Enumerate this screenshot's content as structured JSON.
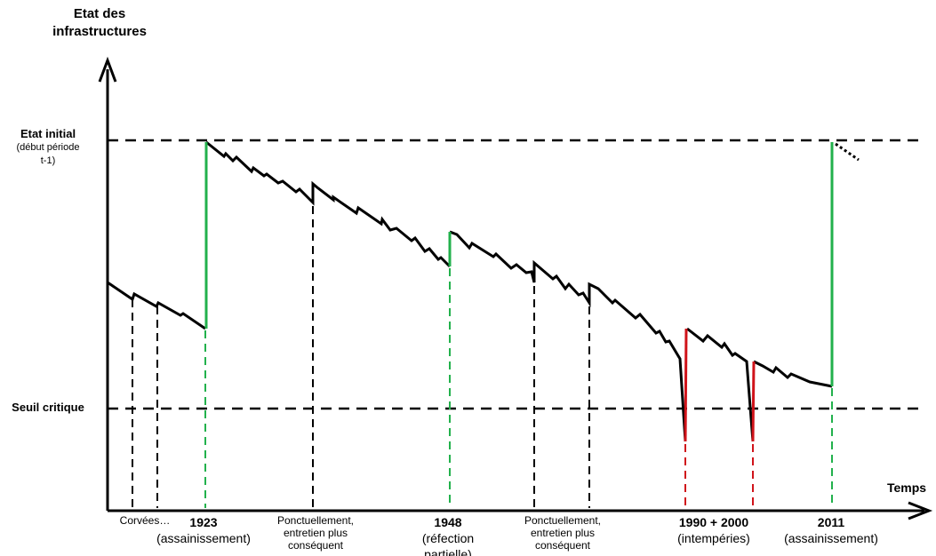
{
  "axis": {
    "y_title_line1": "Etat des",
    "y_title_line2": "infrastructures",
    "x_title": "Temps"
  },
  "levels": {
    "initial_label": "Etat initial",
    "initial_sub1": "(début période",
    "initial_sub2": "t-1)",
    "critical_label": "Seuil critique"
  },
  "events": {
    "corvees": "Corvées…",
    "e1923_year": "1923",
    "e1923_desc": "(assainissement)",
    "maint1_l1": "Ponctuellement,",
    "maint1_l2": "entretien plus",
    "maint1_l3": "conséquent",
    "e1948_year": "1948",
    "e1948_l1": "(réfection",
    "e1948_l2": "partielle)",
    "maint2_l1": "Ponctuellement,",
    "maint2_l2": "entretien plus",
    "maint2_l3": "conséquent",
    "e1990_year": "1990 + 2000",
    "e1990_desc": "(intempéries)",
    "e2011_year": "2011",
    "e2011_desc": "(assainissement)"
  },
  "colors": {
    "curve": "#000000",
    "restoration": "#22b14c",
    "damage": "#d0131a"
  }
}
